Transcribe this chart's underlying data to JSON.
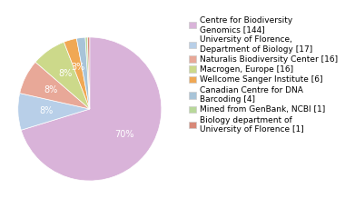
{
  "labels": [
    "Centre for Biodiversity\nGenomics [144]",
    "University of Florence,\nDepartment of Biology [17]",
    "Naturalis Biodiversity Center [16]",
    "Macrogen, Europe [16]",
    "Wellcome Sanger Institute [6]",
    "Canadian Centre for DNA\nBarcoding [4]",
    "Mined from GenBank, NCBI [1]",
    "Biology department of\nUniversity of Florence [1]"
  ],
  "values": [
    144,
    17,
    16,
    16,
    6,
    4,
    1,
    1
  ],
  "colors": [
    "#d9b3d9",
    "#b8cfe8",
    "#e8a898",
    "#ccd98a",
    "#f0a854",
    "#a8c4d8",
    "#b8d89a",
    "#d88878"
  ],
  "text_color": "white",
  "font_size": 7.0,
  "legend_fontsize": 6.5
}
